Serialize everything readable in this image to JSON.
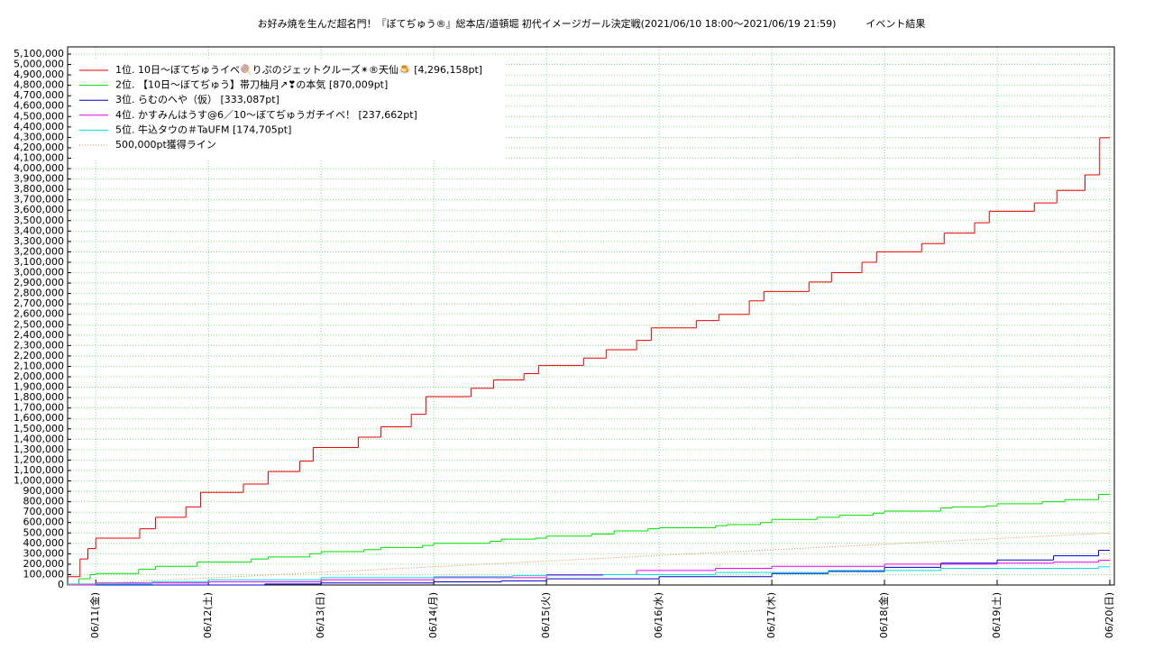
{
  "chart_data": {
    "type": "step",
    "title": "お好み焼を生んだ超名門！『ぼてぢゅう®』総本店/道頓堀 初代イメージガール決定戦(2021/06/10 18:00～2021/06/19 21:59)　　　イベント結果",
    "xlim": [
      -0.25,
      9
    ],
    "xticks": [
      {
        "value": 0,
        "label": "06/11(金)"
      },
      {
        "value": 1,
        "label": "06/12(土)"
      },
      {
        "value": 2,
        "label": "06/13(日)"
      },
      {
        "value": 3,
        "label": "06/14(月)"
      },
      {
        "value": 4,
        "label": "06/15(火)"
      },
      {
        "value": 5,
        "label": "06/16(水)"
      },
      {
        "value": 6,
        "label": "06/17(木)"
      },
      {
        "value": 7,
        "label": "06/18(金)"
      },
      {
        "value": 8,
        "label": "06/19(土)"
      },
      {
        "value": 9,
        "label": "06/20(日)"
      }
    ],
    "ylim": [
      0,
      5100000
    ],
    "yticks": [
      {
        "value": 0,
        "label": "0"
      },
      {
        "value": 100000,
        "label": "100,000"
      },
      {
        "value": 200000,
        "label": "200,000"
      },
      {
        "value": 300000,
        "label": "300,000"
      },
      {
        "value": 400000,
        "label": "400,000"
      },
      {
        "value": 500000,
        "label": "500,000"
      },
      {
        "value": 600000,
        "label": "600,000"
      },
      {
        "value": 700000,
        "label": "700,000"
      },
      {
        "value": 800000,
        "label": "800,000"
      },
      {
        "value": 900000,
        "label": "900,000"
      },
      {
        "value": 1000000,
        "label": "1,000,000"
      },
      {
        "value": 1100000,
        "label": "1,100,000"
      },
      {
        "value": 1200000,
        "label": "1,200,000"
      },
      {
        "value": 1300000,
        "label": "1,300,000"
      },
      {
        "value": 1400000,
        "label": "1,400,000"
      },
      {
        "value": 1500000,
        "label": "1,500,000"
      },
      {
        "value": 1600000,
        "label": "1,600,000"
      },
      {
        "value": 1700000,
        "label": "1,700,000"
      },
      {
        "value": 1800000,
        "label": "1,800,000"
      },
      {
        "value": 1900000,
        "label": "1,900,000"
      },
      {
        "value": 2000000,
        "label": "2,000,000"
      },
      {
        "value": 2100000,
        "label": "2,100,000"
      },
      {
        "value": 2200000,
        "label": "2,200,000"
      },
      {
        "value": 2300000,
        "label": "2,300,000"
      },
      {
        "value": 2400000,
        "label": "2,400,000"
      },
      {
        "value": 2500000,
        "label": "2,500,000"
      },
      {
        "value": 2600000,
        "label": "2,600,000"
      },
      {
        "value": 2700000,
        "label": "2,700,000"
      },
      {
        "value": 2800000,
        "label": "2,800,000"
      },
      {
        "value": 2900000,
        "label": "2,900,000"
      },
      {
        "value": 3000000,
        "label": "3,000,000"
      },
      {
        "value": 3100000,
        "label": "3,100,000"
      },
      {
        "value": 3200000,
        "label": "3,200,000"
      },
      {
        "value": 3300000,
        "label": "3,300,000"
      },
      {
        "value": 3400000,
        "label": "3,400,000"
      },
      {
        "value": 3500000,
        "label": "3,500,000"
      },
      {
        "value": 3600000,
        "label": "3,600,000"
      },
      {
        "value": 3700000,
        "label": "3,700,000"
      },
      {
        "value": 3800000,
        "label": "3,800,000"
      },
      {
        "value": 3900000,
        "label": "3,900,000"
      },
      {
        "value": 4000000,
        "label": "4,000,000"
      },
      {
        "value": 4100000,
        "label": "4,100,000"
      },
      {
        "value": 4200000,
        "label": "4,200,000"
      },
      {
        "value": 4300000,
        "label": "4,300,000"
      },
      {
        "value": 4400000,
        "label": "4,400,000"
      },
      {
        "value": 4500000,
        "label": "4,500,000"
      },
      {
        "value": 4600000,
        "label": "4,600,000"
      },
      {
        "value": 4700000,
        "label": "4,700,000"
      },
      {
        "value": 4800000,
        "label": "4,800,000"
      },
      {
        "value": 4900000,
        "label": "4,900,000"
      },
      {
        "value": 5000000,
        "label": "5,000,000"
      },
      {
        "value": 5100000,
        "label": "5,100,000"
      }
    ],
    "grid": true,
    "grid_color": "#66dd66",
    "legend": "upper left",
    "series": [
      {
        "name": "1位. 10日～ぼてぢゅうイベ🍭りぷのジェットクルーズ✴︎®天仙🍮 [4,296,158pt]",
        "color": "#ee0000",
        "x": [
          -0.25,
          -0.14,
          -0.07,
          0,
          0.39,
          0.53,
          0.8,
          0.93,
          1.31,
          1.53,
          1.81,
          1.93,
          2.33,
          2.53,
          2.8,
          2.93,
          3.33,
          3.53,
          3.8,
          3.93,
          4.33,
          4.53,
          4.8,
          4.93,
          5.33,
          5.53,
          5.8,
          5.93,
          6.33,
          6.53,
          6.8,
          6.93,
          7.33,
          7.53,
          7.8,
          7.93,
          8.33,
          8.53,
          8.78,
          8.91
        ],
        "values": [
          80000,
          250000,
          350000,
          450000,
          540000,
          650000,
          750000,
          890000,
          970000,
          1090000,
          1190000,
          1320000,
          1420000,
          1520000,
          1640000,
          1810000,
          1890000,
          1970000,
          2030000,
          2110000,
          2180000,
          2260000,
          2350000,
          2470000,
          2540000,
          2600000,
          2730000,
          2820000,
          2910000,
          3000000,
          3100000,
          3200000,
          3280000,
          3380000,
          3480000,
          3590000,
          3670000,
          3790000,
          3940000,
          4296158
        ]
      },
      {
        "name": "2位. 【10日～ぼてぢゅう】帯刀柚月↗❣の本気 [870,009pt]",
        "color": "#00dd00",
        "x": [
          -0.25,
          -0.15,
          -0.05,
          0,
          0.38,
          0.53,
          0.9,
          1.38,
          1.53,
          1.9,
          2.0,
          2.38,
          2.53,
          2.9,
          3.0,
          3.5,
          3.6,
          3.9,
          4.0,
          4.4,
          4.6,
          4.9,
          5.0,
          5.5,
          5.6,
          5.9,
          6.0,
          6.4,
          6.6,
          6.9,
          7.0,
          7.5,
          7.6,
          7.9,
          8.0,
          8.4,
          8.6,
          8.9
        ],
        "values": [
          0,
          60000,
          100000,
          110000,
          150000,
          180000,
          220000,
          250000,
          270000,
          300000,
          320000,
          340000,
          360000,
          380000,
          400000,
          420000,
          440000,
          450000,
          470000,
          490000,
          520000,
          540000,
          550000,
          570000,
          580000,
          600000,
          630000,
          650000,
          670000,
          690000,
          710000,
          740000,
          750000,
          760000,
          780000,
          800000,
          820000,
          870009
        ]
      },
      {
        "name": "3位. らむのへや（仮） [333,087pt]",
        "color": "#0000cc",
        "x": [
          -0.25,
          1.5,
          2.0,
          3.0,
          3.6,
          4.0,
          5.0,
          6.0,
          6.5,
          7.0,
          7.5,
          8.0,
          8.5,
          8.9
        ],
        "values": [
          0,
          10000,
          20000,
          30000,
          40000,
          60000,
          80000,
          110000,
          130000,
          170000,
          210000,
          240000,
          280000,
          333087
        ]
      },
      {
        "name": "4位. かすみんはうす@6／10～ぼてぢゅうガチイベ！ [237,662pt]",
        "color": "#ee00ee",
        "x": [
          -0.25,
          0,
          1.0,
          2.0,
          3.0,
          4.0,
          4.8,
          5.5,
          6.0,
          7.0,
          8.0,
          8.5,
          8.9
        ],
        "values": [
          0,
          20000,
          30000,
          50000,
          70000,
          100000,
          140000,
          160000,
          180000,
          200000,
          210000,
          220000,
          237662
        ]
      },
      {
        "name": "5位. 牛込タウの＃TaUFM [174,705pt]",
        "color": "#00dddd",
        "x": [
          -0.25,
          0.5,
          1.0,
          2.0,
          3.0,
          3.7,
          4.5,
          5.5,
          6.5,
          7.5,
          8.9
        ],
        "values": [
          10000,
          30000,
          50000,
          70000,
          80000,
          90000,
          100000,
          120000,
          140000,
          160000,
          174705
        ]
      },
      {
        "name": "500,000pt獲得ライン",
        "color": "#dd8844",
        "style": "dotted",
        "x": [
          -0.25,
          9
        ],
        "values": [
          0,
          500000
        ]
      }
    ]
  }
}
